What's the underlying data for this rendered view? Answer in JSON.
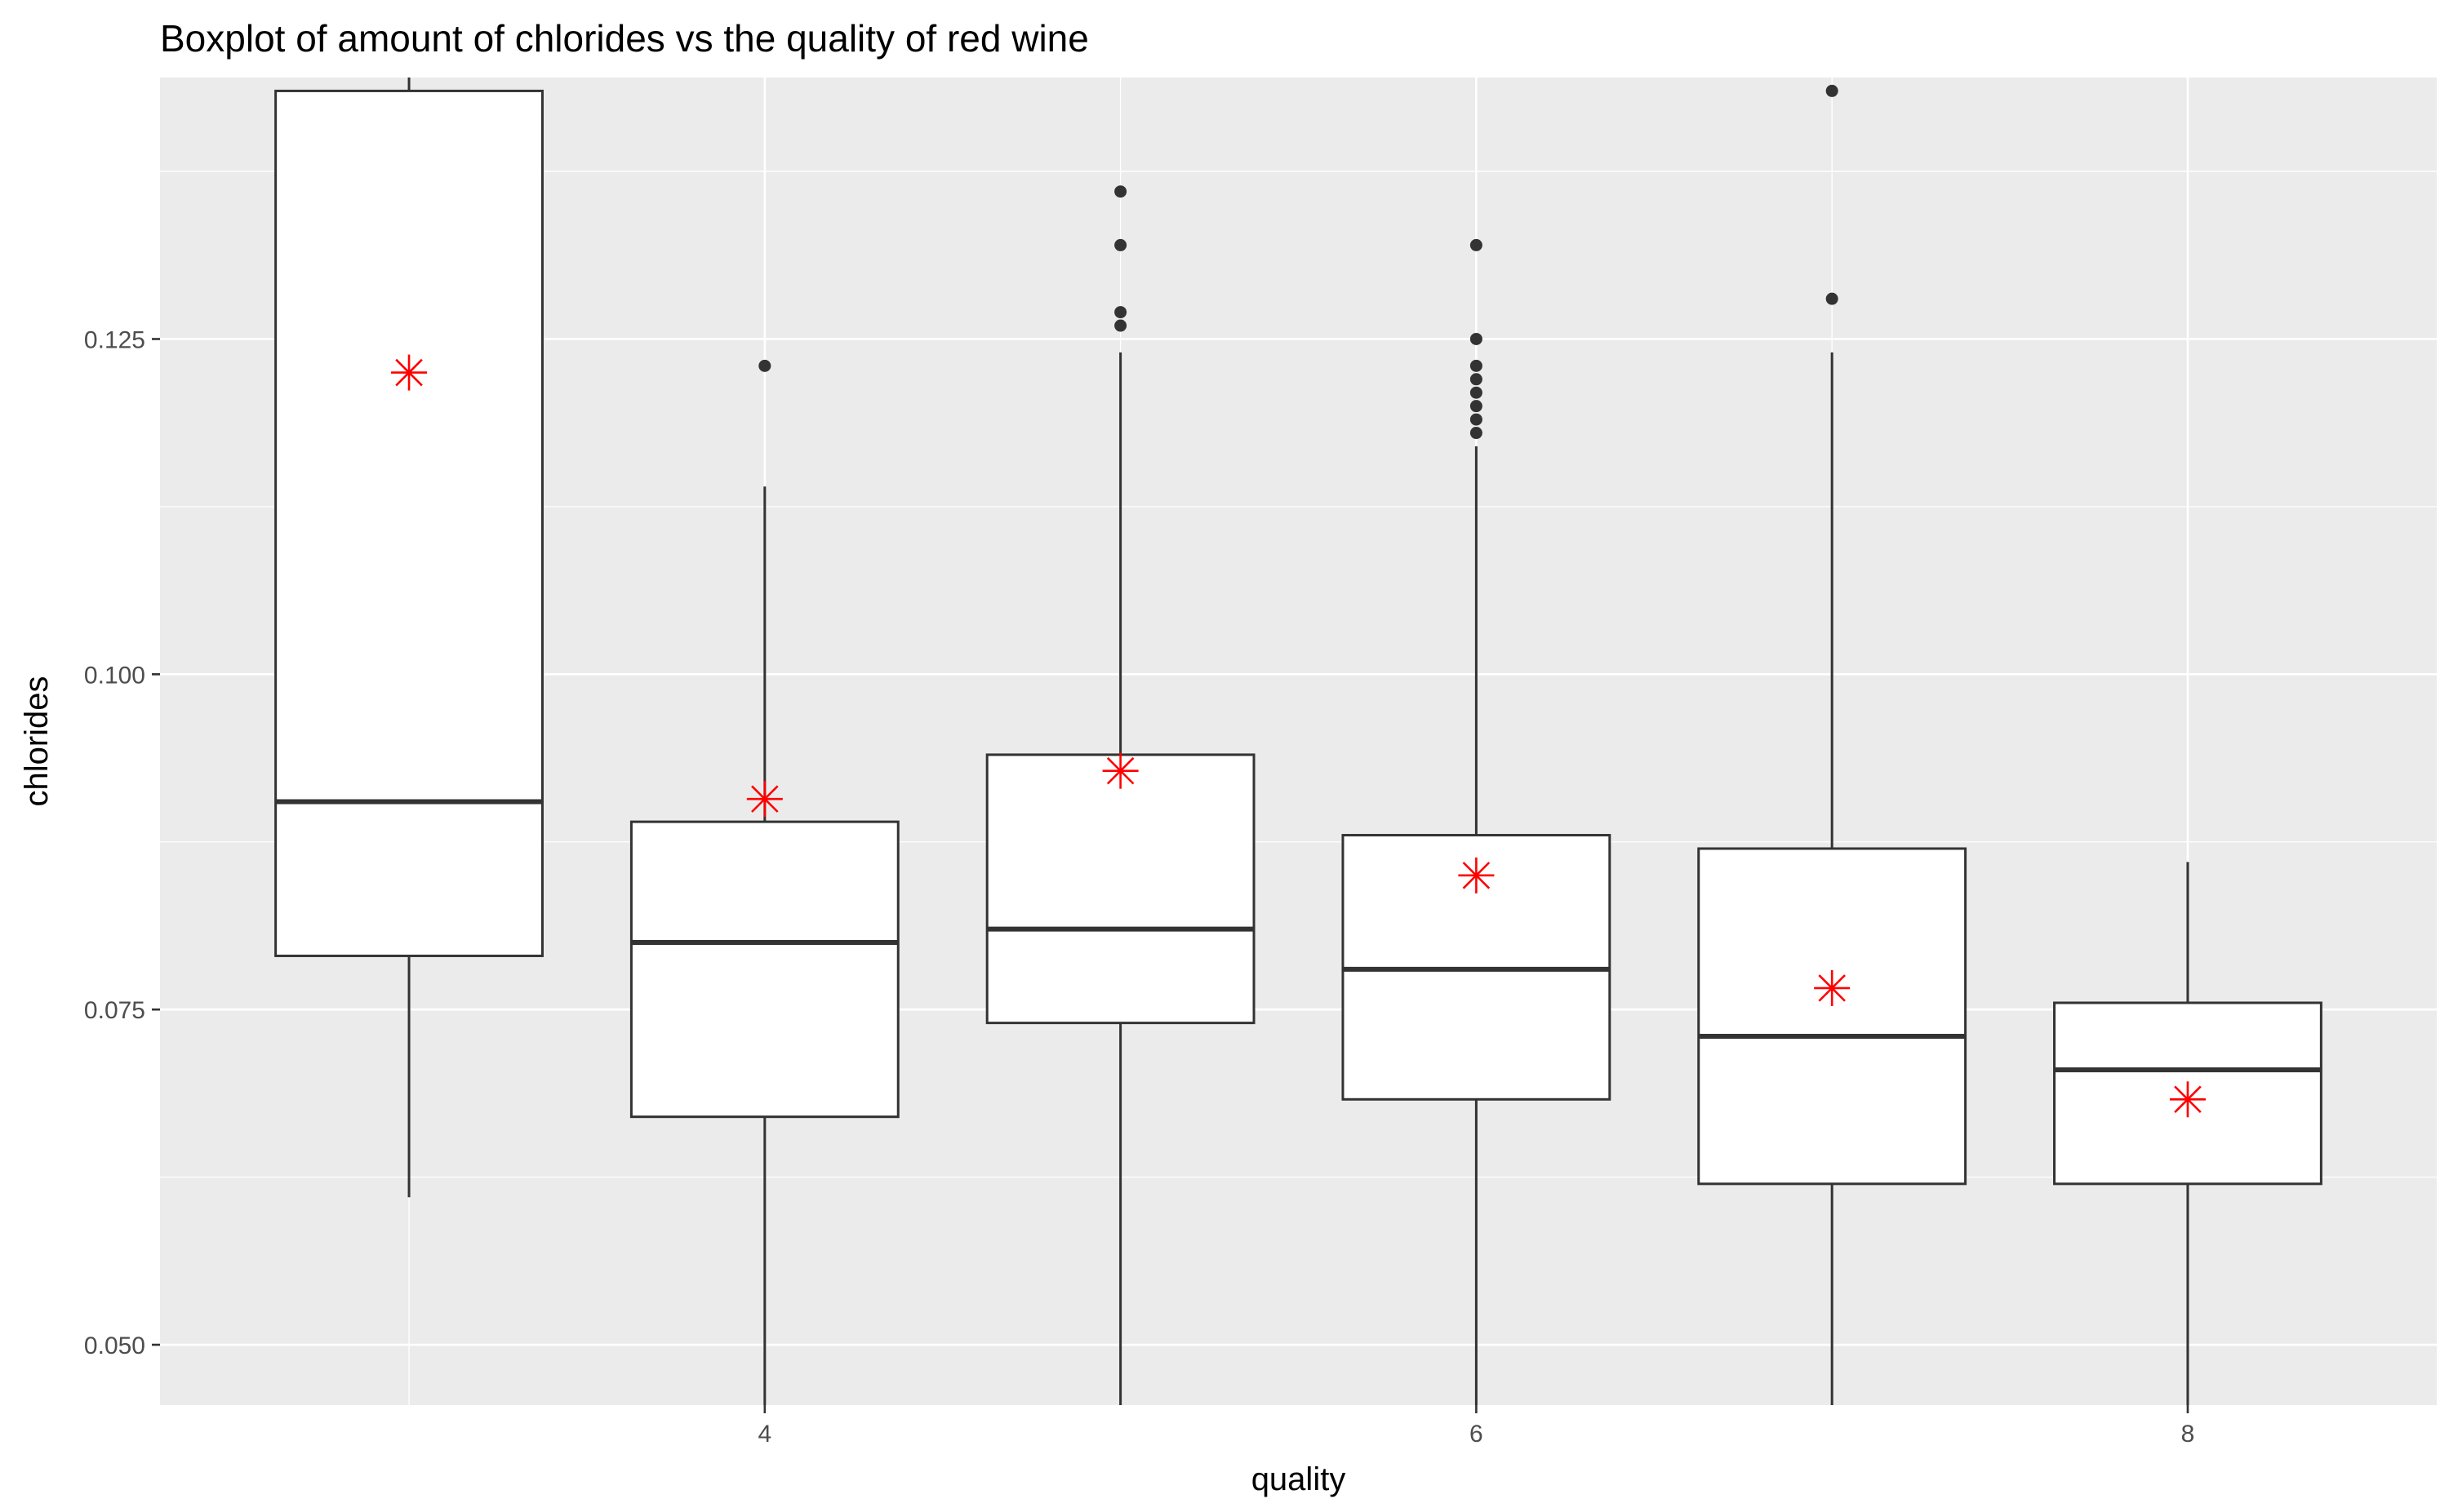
{
  "chart_data": {
    "type": "boxplot",
    "title": "Boxplot of amount of chlorides vs the quality of red wine",
    "xlabel": "quality",
    "ylabel": "chlorides",
    "x_ticks": [
      4,
      6,
      8
    ],
    "y_ticks": [
      0.05,
      0.075,
      0.1,
      0.125
    ],
    "y_tick_labels": [
      "0.050",
      "0.075",
      "0.100",
      "0.125"
    ],
    "xlim": [
      2.3,
      8.7
    ],
    "ylim": [
      0.0455,
      0.1445
    ],
    "grid": true,
    "colors": {
      "panel_background": "#ebebeb",
      "grid_line": "#ffffff",
      "box_fill": "#ffffff",
      "box_line": "#333333",
      "outlier": "#333333",
      "mean_marker": "#ff0000"
    },
    "mean_marker": "asterisk",
    "boxes": [
      {
        "quality": 3,
        "q1": 0.079,
        "median": 0.0905,
        "q3": 0.1435,
        "whisker_low": 0.061,
        "whisker_high": 0.1445,
        "mean": 0.1225,
        "outliers": []
      },
      {
        "quality": 4,
        "q1": 0.067,
        "median": 0.08,
        "q3": 0.089,
        "whisker_low": 0.0455,
        "whisker_high": 0.114,
        "mean": 0.0907,
        "outliers": [
          0.123
        ]
      },
      {
        "quality": 5,
        "q1": 0.074,
        "median": 0.081,
        "q3": 0.094,
        "whisker_low": 0.0455,
        "whisker_high": 0.124,
        "mean": 0.0928,
        "outliers": [
          0.126,
          0.127,
          0.132,
          0.136
        ]
      },
      {
        "quality": 6,
        "q1": 0.0683,
        "median": 0.078,
        "q3": 0.088,
        "whisker_low": 0.0455,
        "whisker_high": 0.117,
        "mean": 0.085,
        "outliers": [
          0.118,
          0.119,
          0.12,
          0.121,
          0.122,
          0.123,
          0.125,
          0.132
        ]
      },
      {
        "quality": 7,
        "q1": 0.062,
        "median": 0.073,
        "q3": 0.087,
        "whisker_low": 0.0455,
        "whisker_high": 0.124,
        "mean": 0.0766,
        "outliers": [
          0.128,
          0.1435
        ]
      },
      {
        "quality": 8,
        "q1": 0.062,
        "median": 0.0705,
        "q3": 0.0755,
        "whisker_low": 0.0455,
        "whisker_high": 0.086,
        "mean": 0.0683,
        "outliers": []
      }
    ]
  }
}
